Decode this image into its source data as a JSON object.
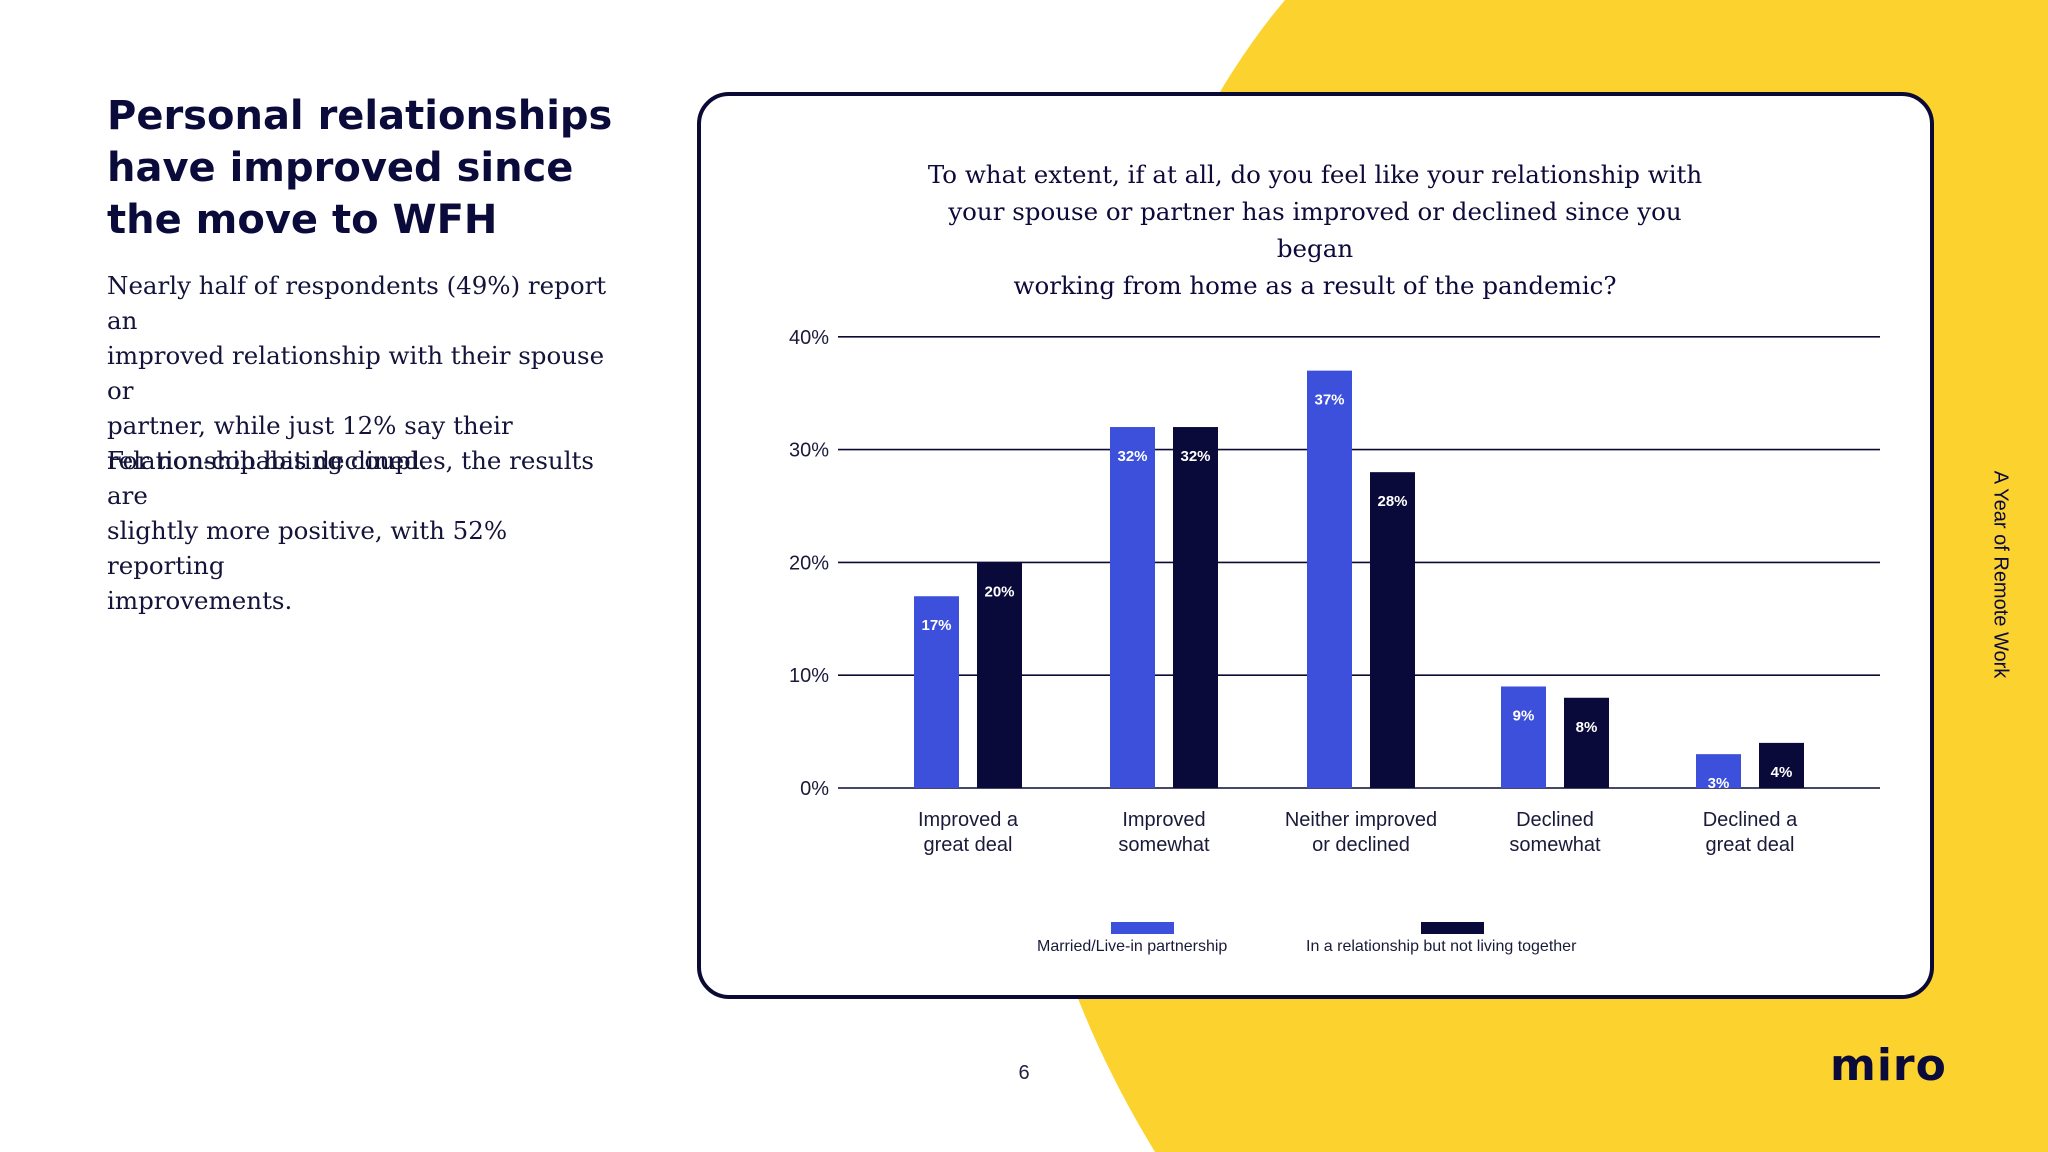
{
  "heading": {
    "line1": "Personal relationships",
    "line2": "have improved since",
    "line3": "the move to WFH"
  },
  "paragraphs": {
    "p1": [
      "Nearly half of respondents (49%) report an",
      "improved relationship with their spouse or",
      "partner, while just 12% say their",
      "relationship has declined."
    ],
    "p2": [
      "For non-cohabiting couples, the results are",
      "slightly more positive, with 52% reporting",
      "improvements."
    ]
  },
  "colors": {
    "accent_yellow": "#fcd22f",
    "series1": "#3c50dc",
    "series2": "#0a0a3a",
    "navy": "#0a0a35"
  },
  "chart_data": {
    "type": "bar",
    "title": "To what extent, if at all, do you feel like your relationship with your spouse or partner has improved or declined since you began working from home as a result of the pandemic?",
    "title_lines": [
      "To what extent, if at all, do you feel like your relationship with",
      "your spouse or partner has improved or declined since you began",
      "working from home as a result of the pandemic?"
    ],
    "categories": [
      [
        "Improved a",
        "great deal"
      ],
      [
        "Improved",
        "somewhat"
      ],
      [
        "Neither improved",
        "or declined"
      ],
      [
        "Declined",
        "somewhat"
      ],
      [
        "Declined a",
        "great deal"
      ]
    ],
    "series": [
      {
        "name": "Married/Live-in partnership",
        "values": [
          17,
          32,
          37,
          9,
          3
        ],
        "labels": [
          "17%",
          "32%",
          "37%",
          "9%",
          "3%"
        ],
        "color": "#3c50dc"
      },
      {
        "name": "In a relationship but not living together",
        "values": [
          20,
          32,
          28,
          8,
          4
        ],
        "labels": [
          "20%",
          "32%",
          "28%",
          "8%",
          "4%"
        ],
        "color": "#0a0a3a"
      }
    ],
    "ylim": [
      0,
      40
    ],
    "yticks": [
      0,
      10,
      20,
      30,
      40
    ],
    "ytick_labels": [
      "0%",
      "10%",
      "20%",
      "30%",
      "40%"
    ],
    "grid": true,
    "legend_position": "bottom"
  },
  "footer": {
    "page_number": "6",
    "side_title": "A Year of Remote Work",
    "logo": "miro"
  }
}
